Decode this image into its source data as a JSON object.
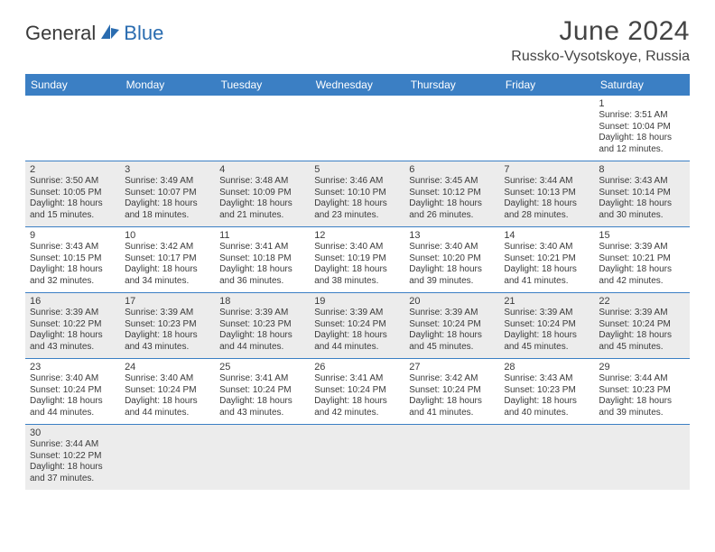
{
  "header": {
    "logo": {
      "part1": "General",
      "part2": "Blue"
    },
    "title": "June 2024",
    "subtitle": "Russko-Vysotskoye, Russia"
  },
  "styling": {
    "header_bg": "#3b7fc4",
    "header_fg": "#ffffff",
    "alt_row_bg": "#ececec",
    "border_color": "#3b7fc4",
    "text_color": "#3a3a3a",
    "title_fontsize": 30,
    "subtitle_fontsize": 16,
    "dayhead_fontsize": 12,
    "cell_fontsize": 10,
    "col_count": 7
  },
  "day_headers": [
    "Sunday",
    "Monday",
    "Tuesday",
    "Wednesday",
    "Thursday",
    "Friday",
    "Saturday"
  ],
  "weeks": [
    [
      null,
      null,
      null,
      null,
      null,
      null,
      {
        "n": "1",
        "sr": "3:51 AM",
        "ss": "10:04 PM",
        "dl": "18 hours and 12 minutes."
      }
    ],
    [
      {
        "n": "2",
        "sr": "3:50 AM",
        "ss": "10:05 PM",
        "dl": "18 hours and 15 minutes."
      },
      {
        "n": "3",
        "sr": "3:49 AM",
        "ss": "10:07 PM",
        "dl": "18 hours and 18 minutes."
      },
      {
        "n": "4",
        "sr": "3:48 AM",
        "ss": "10:09 PM",
        "dl": "18 hours and 21 minutes."
      },
      {
        "n": "5",
        "sr": "3:46 AM",
        "ss": "10:10 PM",
        "dl": "18 hours and 23 minutes."
      },
      {
        "n": "6",
        "sr": "3:45 AM",
        "ss": "10:12 PM",
        "dl": "18 hours and 26 minutes."
      },
      {
        "n": "7",
        "sr": "3:44 AM",
        "ss": "10:13 PM",
        "dl": "18 hours and 28 minutes."
      },
      {
        "n": "8",
        "sr": "3:43 AM",
        "ss": "10:14 PM",
        "dl": "18 hours and 30 minutes."
      }
    ],
    [
      {
        "n": "9",
        "sr": "3:43 AM",
        "ss": "10:15 PM",
        "dl": "18 hours and 32 minutes."
      },
      {
        "n": "10",
        "sr": "3:42 AM",
        "ss": "10:17 PM",
        "dl": "18 hours and 34 minutes."
      },
      {
        "n": "11",
        "sr": "3:41 AM",
        "ss": "10:18 PM",
        "dl": "18 hours and 36 minutes."
      },
      {
        "n": "12",
        "sr": "3:40 AM",
        "ss": "10:19 PM",
        "dl": "18 hours and 38 minutes."
      },
      {
        "n": "13",
        "sr": "3:40 AM",
        "ss": "10:20 PM",
        "dl": "18 hours and 39 minutes."
      },
      {
        "n": "14",
        "sr": "3:40 AM",
        "ss": "10:21 PM",
        "dl": "18 hours and 41 minutes."
      },
      {
        "n": "15",
        "sr": "3:39 AM",
        "ss": "10:21 PM",
        "dl": "18 hours and 42 minutes."
      }
    ],
    [
      {
        "n": "16",
        "sr": "3:39 AM",
        "ss": "10:22 PM",
        "dl": "18 hours and 43 minutes."
      },
      {
        "n": "17",
        "sr": "3:39 AM",
        "ss": "10:23 PM",
        "dl": "18 hours and 43 minutes."
      },
      {
        "n": "18",
        "sr": "3:39 AM",
        "ss": "10:23 PM",
        "dl": "18 hours and 44 minutes."
      },
      {
        "n": "19",
        "sr": "3:39 AM",
        "ss": "10:24 PM",
        "dl": "18 hours and 44 minutes."
      },
      {
        "n": "20",
        "sr": "3:39 AM",
        "ss": "10:24 PM",
        "dl": "18 hours and 45 minutes."
      },
      {
        "n": "21",
        "sr": "3:39 AM",
        "ss": "10:24 PM",
        "dl": "18 hours and 45 minutes."
      },
      {
        "n": "22",
        "sr": "3:39 AM",
        "ss": "10:24 PM",
        "dl": "18 hours and 45 minutes."
      }
    ],
    [
      {
        "n": "23",
        "sr": "3:40 AM",
        "ss": "10:24 PM",
        "dl": "18 hours and 44 minutes."
      },
      {
        "n": "24",
        "sr": "3:40 AM",
        "ss": "10:24 PM",
        "dl": "18 hours and 44 minutes."
      },
      {
        "n": "25",
        "sr": "3:41 AM",
        "ss": "10:24 PM",
        "dl": "18 hours and 43 minutes."
      },
      {
        "n": "26",
        "sr": "3:41 AM",
        "ss": "10:24 PM",
        "dl": "18 hours and 42 minutes."
      },
      {
        "n": "27",
        "sr": "3:42 AM",
        "ss": "10:24 PM",
        "dl": "18 hours and 41 minutes."
      },
      {
        "n": "28",
        "sr": "3:43 AM",
        "ss": "10:23 PM",
        "dl": "18 hours and 40 minutes."
      },
      {
        "n": "29",
        "sr": "3:44 AM",
        "ss": "10:23 PM",
        "dl": "18 hours and 39 minutes."
      }
    ],
    [
      {
        "n": "30",
        "sr": "3:44 AM",
        "ss": "10:22 PM",
        "dl": "18 hours and 37 minutes."
      },
      null,
      null,
      null,
      null,
      null,
      null
    ]
  ],
  "labels": {
    "sunrise_prefix": "Sunrise: ",
    "sunset_prefix": "Sunset: ",
    "daylight_prefix": "Daylight: "
  }
}
